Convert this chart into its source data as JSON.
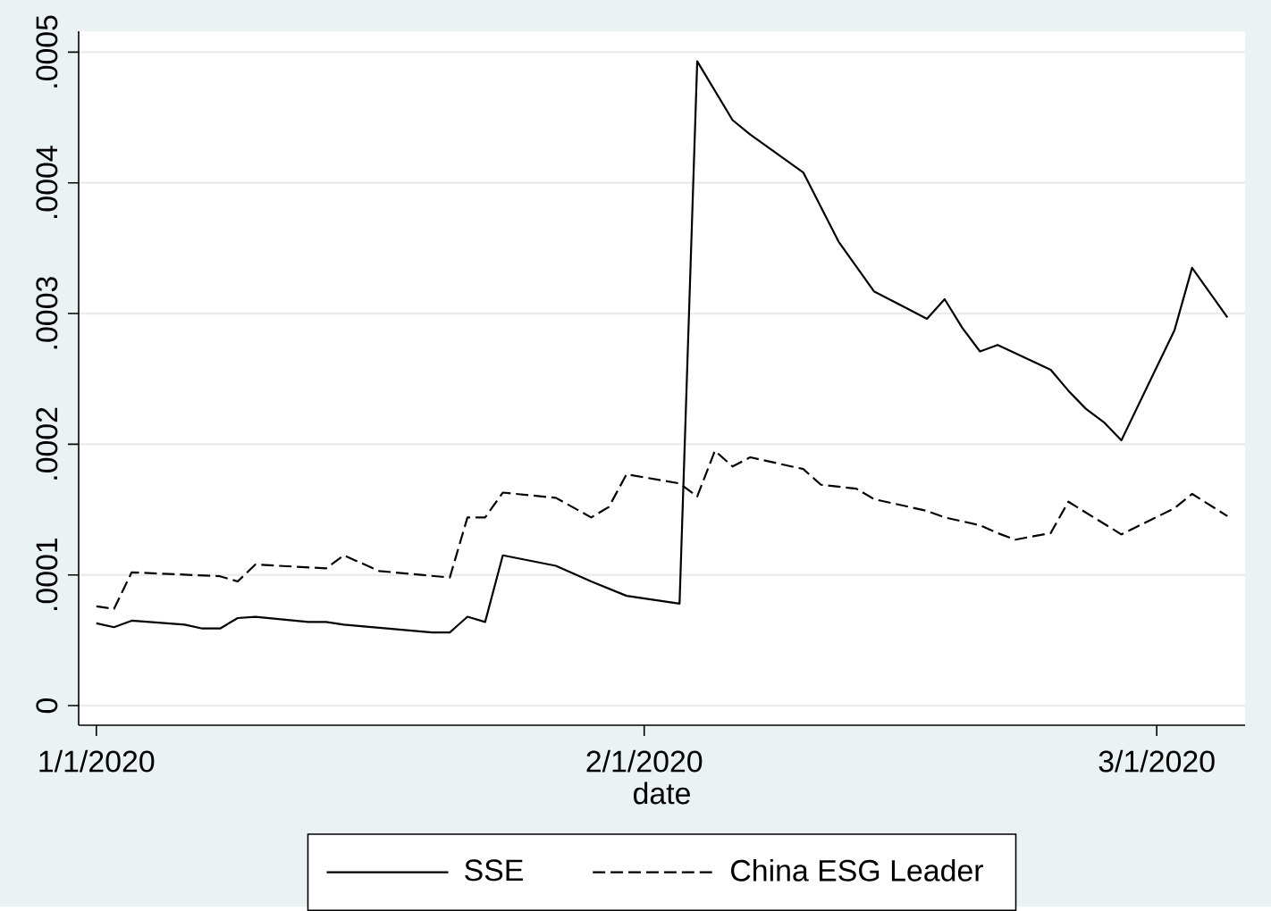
{
  "chart_data": {
    "type": "line",
    "xlabel": "date",
    "xlim": [
      "2019-12-31",
      "2020-03-06"
    ],
    "xticks": [
      {
        "value": "2020-01-01",
        "label": "1/1/2020"
      },
      {
        "value": "2020-02-01",
        "label": "2/1/2020"
      },
      {
        "value": "2020-03-01",
        "label": "3/1/2020"
      }
    ],
    "ylim": [
      -1.5e-05,
      0.000516
    ],
    "yticks": [
      {
        "value": 0,
        "label": "0"
      },
      {
        "value": 0.0001,
        "label": ".0001"
      },
      {
        "value": 0.0002,
        "label": ".0002"
      },
      {
        "value": 0.0003,
        "label": ".0003"
      },
      {
        "value": 0.0004,
        "label": ".0004"
      },
      {
        "value": 0.0005,
        "label": ".0005"
      }
    ],
    "grid": "y",
    "legend": "bottom",
    "series": [
      {
        "name": "SSE",
        "color": "#000000",
        "line_style": "solid",
        "x": [
          "2020-01-01",
          "2020-01-02",
          "2020-01-03",
          "2020-01-06",
          "2020-01-07",
          "2020-01-08",
          "2020-01-09",
          "2020-01-10",
          "2020-01-13",
          "2020-01-14",
          "2020-01-15",
          "2020-01-20",
          "2020-01-21",
          "2020-01-22",
          "2020-01-23",
          "2020-01-24",
          "2020-01-27",
          "2020-01-29",
          "2020-01-31",
          "2020-02-03",
          "2020-02-04",
          "2020-02-06",
          "2020-02-07",
          "2020-02-10",
          "2020-02-12",
          "2020-02-14",
          "2020-02-17",
          "2020-02-18",
          "2020-02-19",
          "2020-02-20",
          "2020-02-21",
          "2020-02-24",
          "2020-02-25",
          "2020-02-26",
          "2020-02-27",
          "2020-02-28",
          "2020-03-02",
          "2020-03-03",
          "2020-03-05"
        ],
        "values": [
          6.3e-05,
          6e-05,
          6.5e-05,
          6.2e-05,
          5.9e-05,
          5.9e-05,
          6.7e-05,
          6.8e-05,
          6.4e-05,
          6.4e-05,
          6.2e-05,
          5.6e-05,
          5.6e-05,
          6.8e-05,
          6.4e-05,
          0.000115,
          0.000107,
          9.5e-05,
          8.4e-05,
          7.8e-05,
          0.000493,
          0.000448,
          0.000437,
          0.000408,
          0.000355,
          0.000317,
          0.000296,
          0.000311,
          0.000289,
          0.000271,
          0.000276,
          0.000257,
          0.000241,
          0.000227,
          0.000217,
          0.000203,
          0.000287,
          0.000335,
          0.000297
        ]
      },
      {
        "name": "China ESG Leader",
        "color": "#000000",
        "line_style": "dashed",
        "x": [
          "2020-01-01",
          "2020-01-02",
          "2020-01-03",
          "2020-01-08",
          "2020-01-09",
          "2020-01-10",
          "2020-01-14",
          "2020-01-15",
          "2020-01-17",
          "2020-01-21",
          "2020-01-22",
          "2020-01-23",
          "2020-01-24",
          "2020-01-27",
          "2020-01-29",
          "2020-01-30",
          "2020-01-31",
          "2020-02-03",
          "2020-02-04",
          "2020-02-05",
          "2020-02-06",
          "2020-02-07",
          "2020-02-10",
          "2020-02-11",
          "2020-02-13",
          "2020-02-14",
          "2020-02-17",
          "2020-02-18",
          "2020-02-20",
          "2020-02-21",
          "2020-02-22",
          "2020-02-24",
          "2020-02-25",
          "2020-02-28",
          "2020-03-02",
          "2020-03-03",
          "2020-03-05"
        ],
        "values": [
          7.6e-05,
          7.4e-05,
          0.000102,
          9.9e-05,
          9.5e-05,
          0.000108,
          0.000105,
          0.000115,
          0.000103,
          9.8e-05,
          0.000144,
          0.000144,
          0.000163,
          0.000159,
          0.000144,
          0.000152,
          0.000177,
          0.00017,
          0.00016,
          0.000195,
          0.000183,
          0.00019,
          0.000181,
          0.000169,
          0.000166,
          0.000158,
          0.000149,
          0.000144,
          0.000138,
          0.000132,
          0.000127,
          0.000132,
          0.000156,
          0.000131,
          0.000151,
          0.000162,
          0.000145
        ]
      }
    ]
  }
}
